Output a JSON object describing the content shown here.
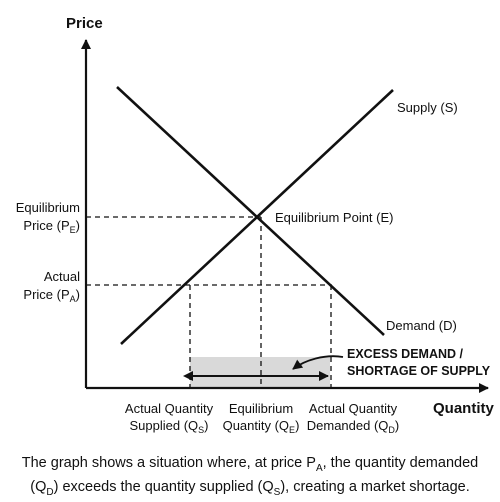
{
  "axes": {
    "y_title": "Price",
    "x_title": "Quantity"
  },
  "curves": {
    "supply": "Supply (S)",
    "demand": "Demand (D)"
  },
  "points": {
    "equilibrium": "Equilibrium Point (E)"
  },
  "y_labels": {
    "equilibrium_line1": "Equilibrium",
    "equilibrium_line2": "Price (P",
    "equilibrium_sub": "E",
    "actual_line1": "Actual",
    "actual_line2": "Price (P",
    "actual_sub": "A",
    "close": ")"
  },
  "x_labels": {
    "supplied_line1": "Actual Quantity",
    "supplied_line2": "Supplied (Q",
    "supplied_sub": "S",
    "equilibrium_line1": "Equilibrium",
    "equilibrium_line2": "Quantity (Q",
    "equilibrium_sub": "E",
    "demanded_line1": "Actual Quantity",
    "demanded_line2": "Demanded (Q",
    "demanded_sub": "D",
    "close": ")"
  },
  "annotation": {
    "line1": "EXCESS DEMAND /",
    "line2": "SHORTAGE OF SUPPLY"
  },
  "caption": {
    "part1": "The graph shows a situation where, at price P",
    "sub1": "A",
    "part2": ", the quantity demanded",
    "part3": "(Q",
    "sub2": "D",
    "part4": ") exceeds the quantity supplied (Q",
    "sub3": "S",
    "part5": "), creating a market shortage."
  },
  "colors": {
    "shortage_fill": "#d9d9d9"
  }
}
